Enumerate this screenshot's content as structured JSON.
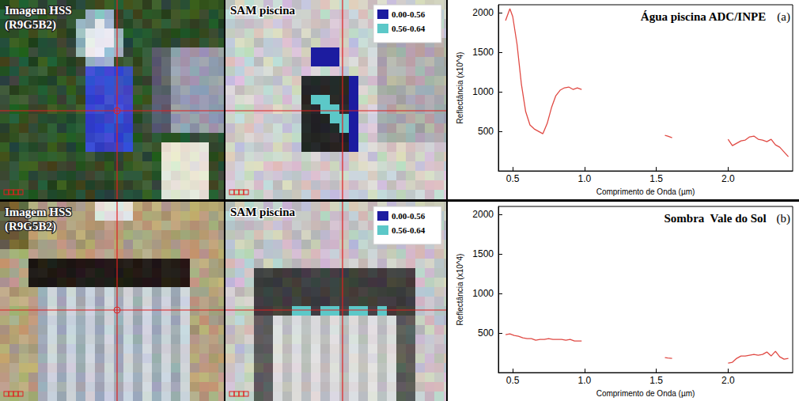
{
  "panels": [
    {
      "image": {
        "title": "Imagem HSS",
        "subtitle": "(R9G5B2)"
      },
      "sam": {
        "title": "SAM piscina",
        "legend": [
          {
            "label": "0.00-0.56",
            "color": "#1c1ca0"
          },
          {
            "label": "0.56-0.64",
            "color": "#5cc8c8"
          }
        ]
      }
    },
    {
      "image": {
        "title": "Imagem HSS",
        "subtitle": "(R9G5B2)"
      },
      "sam": {
        "title": "SAM piscina",
        "legend": [
          {
            "label": "0.00-0.56",
            "color": "#1c1ca0"
          },
          {
            "label": "0.56-0.64",
            "color": "#5cc8c8"
          }
        ]
      }
    }
  ],
  "chart_data": [
    {
      "type": "line",
      "title": "Água piscina ADC/INPE",
      "annotations": [
        "(a)"
      ],
      "x_label": "Comprimento de Onda (µm)",
      "y_label": "Reflectância (x10^4)",
      "x": [
        0.45,
        0.48,
        0.5,
        0.53,
        0.56,
        0.59,
        0.62,
        0.65,
        0.68,
        0.71,
        0.74,
        0.77,
        0.8,
        0.83,
        0.86,
        0.89,
        0.92,
        0.95,
        0.98,
        1.25,
        1.56,
        1.58,
        1.61,
        1.8,
        2.0,
        2.03,
        2.06,
        2.09,
        2.12,
        2.15,
        2.18,
        2.21,
        2.24,
        2.27,
        2.3,
        2.33,
        2.36,
        2.39,
        2.42
      ],
      "values": [
        1900,
        2050,
        1950,
        1600,
        1100,
        750,
        580,
        530,
        500,
        470,
        600,
        800,
        950,
        1020,
        1050,
        1060,
        1030,
        1050,
        1030,
        null,
        450,
        440,
        420,
        null,
        400,
        320,
        350,
        380,
        390,
        430,
        440,
        400,
        390,
        370,
        400,
        330,
        300,
        240,
        180
      ],
      "color": "#e04a44",
      "xlim": [
        0.4,
        2.45
      ],
      "xticks": [
        0.5,
        {
          "value": 1,
          "label": "1.0"
        },
        1.5,
        {
          "value": 2,
          "label": "2.0"
        }
      ],
      "ylim": [
        0,
        2100
      ],
      "yticks": [
        500,
        1000,
        1500,
        2000
      ],
      "grid": false
    },
    {
      "type": "line",
      "title": "Sombra  Vale do Sol",
      "annotations": [
        "(b)"
      ],
      "x_label": "Comprimento de Onda (µm)",
      "y_label": "Reflectância (x10^4)",
      "x": [
        0.45,
        0.48,
        0.51,
        0.54,
        0.57,
        0.6,
        0.63,
        0.66,
        0.69,
        0.72,
        0.75,
        0.78,
        0.81,
        0.84,
        0.87,
        0.9,
        0.93,
        0.96,
        0.98,
        1.25,
        1.56,
        1.58,
        1.61,
        1.8,
        2.0,
        2.03,
        2.06,
        2.09,
        2.12,
        2.15,
        2.18,
        2.21,
        2.24,
        2.27,
        2.3,
        2.33,
        2.36,
        2.39,
        2.42
      ],
      "values": [
        480,
        490,
        470,
        460,
        440,
        430,
        430,
        410,
        420,
        420,
        430,
        420,
        420,
        420,
        410,
        420,
        400,
        400,
        400,
        null,
        190,
        185,
        180,
        null,
        120,
        130,
        180,
        210,
        210,
        220,
        230,
        220,
        230,
        260,
        210,
        270,
        200,
        170,
        180
      ],
      "color": "#e04a44",
      "xlim": [
        0.4,
        2.45
      ],
      "xticks": [
        0.5,
        {
          "value": 1,
          "label": "1.0"
        },
        1.5,
        {
          "value": 2,
          "label": "2.0"
        }
      ],
      "ylim": [
        0,
        2100
      ],
      "yticks": [
        500,
        1000,
        1500,
        2000
      ],
      "grid": false
    }
  ]
}
